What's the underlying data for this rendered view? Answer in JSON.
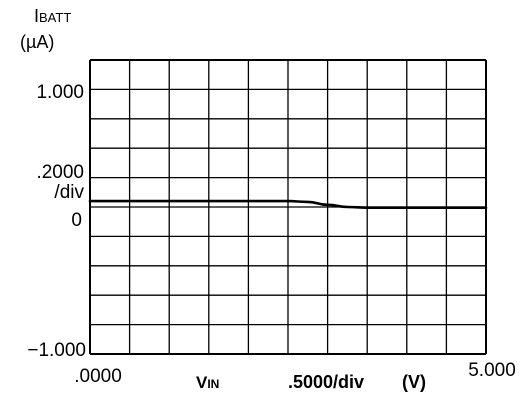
{
  "chart_data": {
    "type": "line",
    "y_axis": {
      "label_main": "I",
      "label_sub": "BATT",
      "unit": "(µA)",
      "top_label": "1.000",
      "scale_label_value": ".2000",
      "scale_label_unit": "/div",
      "zero_label": "0",
      "bottom_label": "−1.000",
      "ylim": [
        -1.0,
        1.0
      ],
      "divisions": 10
    },
    "x_axis": {
      "left_label": ".0000",
      "axis_label_main": "V",
      "axis_label_sub": "IN",
      "scale_label": ".5000/div",
      "unit": "(V)",
      "right_label": "5.000",
      "xlim": [
        0.0,
        5.0
      ],
      "divisions": 10
    },
    "grid": true,
    "series": [
      {
        "x": [
          0.0,
          0.5,
          1.0,
          1.5,
          2.0,
          2.5,
          2.75,
          3.0,
          3.25,
          3.5,
          4.0,
          4.5,
          5.0
        ],
        "y": [
          0.04,
          0.04,
          0.04,
          0.04,
          0.04,
          0.04,
          0.035,
          0.015,
          0.0,
          -0.005,
          -0.005,
          -0.005,
          -0.005
        ]
      }
    ]
  }
}
